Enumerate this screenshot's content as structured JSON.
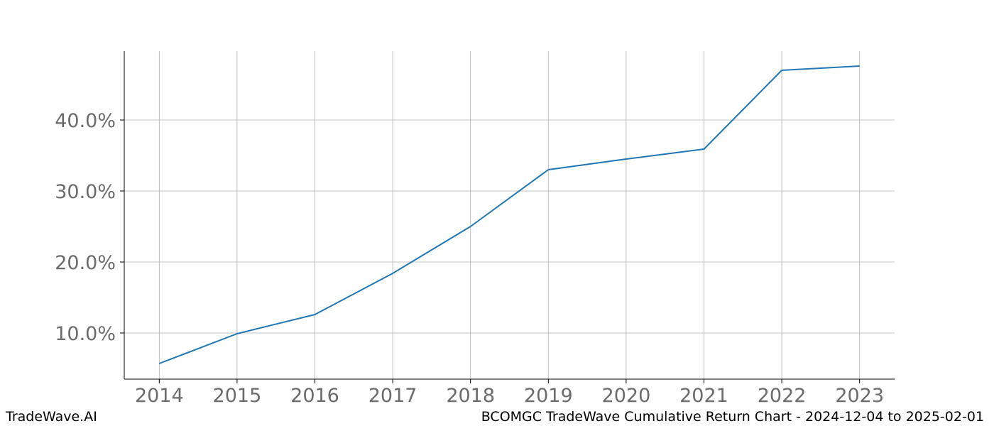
{
  "footer": {
    "brand": "TradeWave.AI",
    "caption": "BCOMGC TradeWave Cumulative Return Chart - 2024-12-04 to 2025-02-01"
  },
  "chart_data": {
    "type": "line",
    "title": "",
    "xlabel": "",
    "ylabel": "",
    "x": [
      2014,
      2015,
      2016,
      2017,
      2018,
      2019,
      2020,
      2021,
      2022,
      2023
    ],
    "series": [
      {
        "values": [
          5.7,
          9.9,
          12.6,
          18.4,
          25.0,
          33.0,
          34.5,
          35.9,
          47.0,
          47.6
        ],
        "color": "#1f77b4"
      }
    ],
    "xlim": [
      2013.55,
      2023.45
    ],
    "ylim": [
      3.5,
      49.7
    ],
    "yticks": [
      10,
      20,
      30,
      40
    ],
    "ytick_labels": [
      "10.0%",
      "20.0%",
      "30.0%",
      "40.0%"
    ],
    "xtick_labels": [
      "2014",
      "2015",
      "2016",
      "2017",
      "2018",
      "2019",
      "2020",
      "2021",
      "2022",
      "2023"
    ],
    "grid": true,
    "legend": "none"
  }
}
